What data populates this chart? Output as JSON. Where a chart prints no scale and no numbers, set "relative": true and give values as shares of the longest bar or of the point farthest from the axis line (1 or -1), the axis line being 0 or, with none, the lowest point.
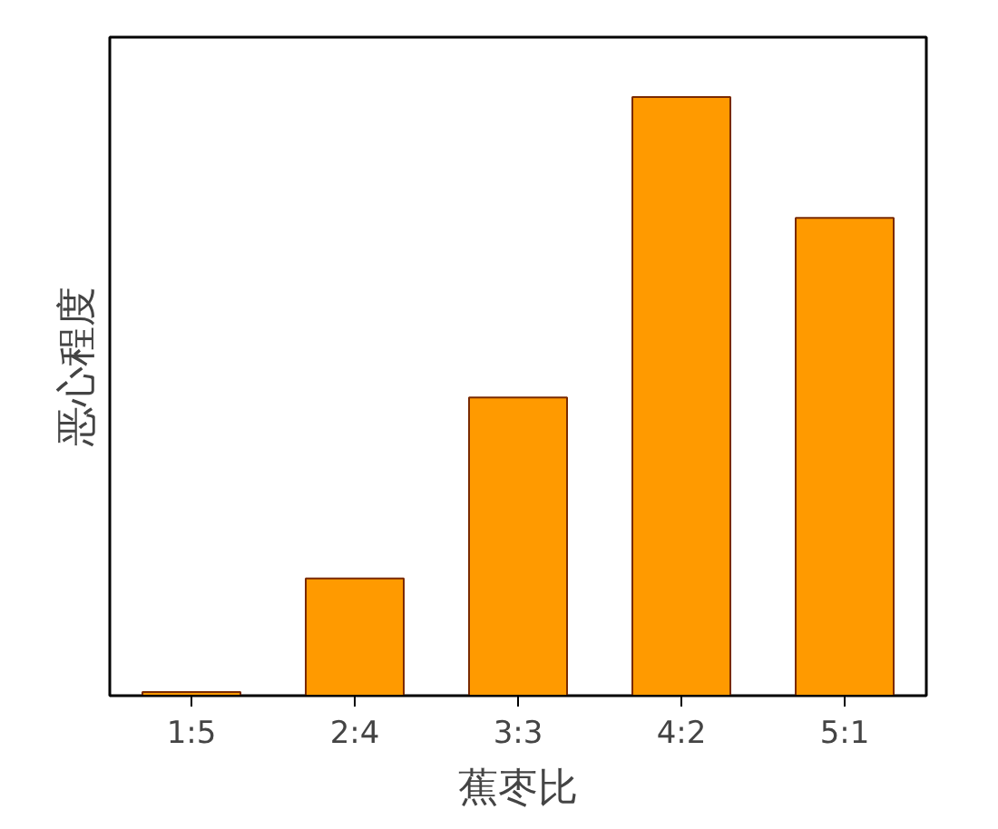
{
  "chart_data": {
    "type": "bar",
    "relative": true,
    "xlabel": "蕉枣比",
    "ylabel": "恶心程度",
    "categories": [
      "1:5",
      "2:4",
      "3:3",
      "4:2",
      "5:1"
    ],
    "values": [
      0.006,
      0.196,
      0.498,
      1,
      0.798
    ],
    "color": "#ff9a00",
    "grid": false
  }
}
